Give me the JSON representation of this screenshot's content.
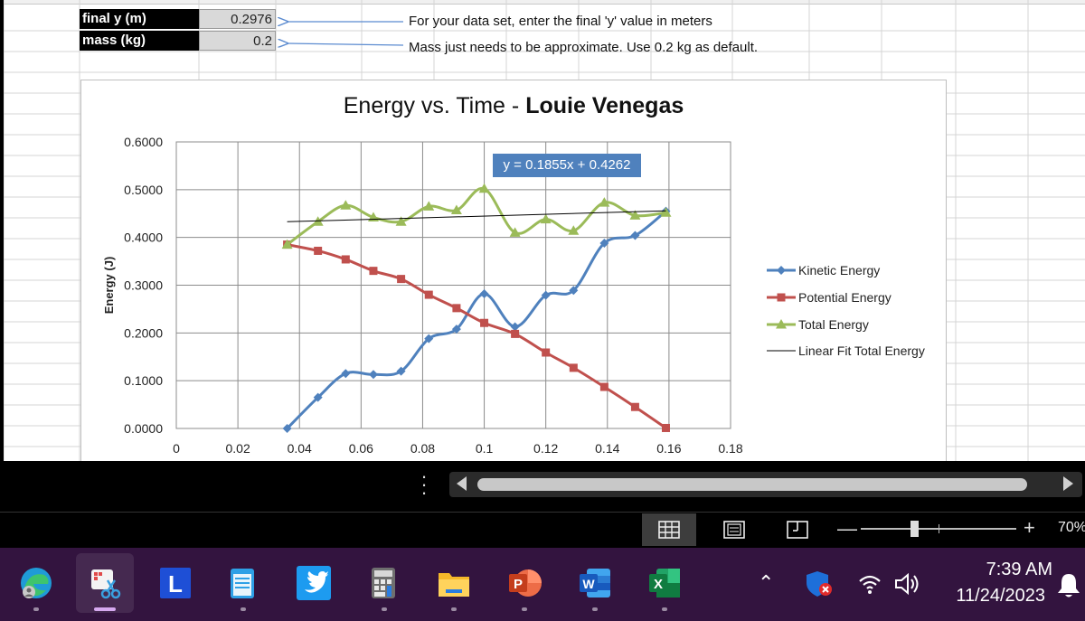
{
  "params": {
    "final_y_label": "final y (m)",
    "final_y_value": "0.2976",
    "mass_label": "mass (kg)",
    "mass_value": "0.2"
  },
  "notes": {
    "final_y_note": "For your data set, enter the final 'y' value in meters",
    "mass_note": "Mass just needs to be approximate. Use 0.2 kg as default."
  },
  "chart": {
    "title_prefix": "Energy vs. Time - ",
    "title_bold": "Louie Venegas",
    "fit_equation": "y = 0.1855x + 0.4262"
  },
  "chart_data": {
    "type": "line",
    "title": "Energy vs. Time - Louie Venegas",
    "ylabel": "Energy (J)",
    "xlabel": "",
    "xlim": [
      0,
      0.18
    ],
    "ylim": [
      0,
      0.6
    ],
    "x_ticks": [
      "0",
      "0.02",
      "0.04",
      "0.06",
      "0.08",
      "0.1",
      "0.12",
      "0.14",
      "0.16",
      "0.18"
    ],
    "y_ticks": [
      "0.0000",
      "0.1000",
      "0.2000",
      "0.3000",
      "0.4000",
      "0.5000",
      "0.6000"
    ],
    "grid": true,
    "legend_position": "right",
    "x": [
      0.036,
      0.046,
      0.055,
      0.064,
      0.073,
      0.082,
      0.091,
      0.1,
      0.11,
      0.12,
      0.129,
      0.139,
      0.149,
      0.159
    ],
    "series": [
      {
        "name": "Kinetic Energy",
        "color": "#4f81bd",
        "marker": "diamond",
        "values": [
          0.0,
          0.065,
          0.115,
          0.113,
          0.12,
          0.188,
          0.208,
          0.282,
          0.213,
          0.279,
          0.289,
          0.388,
          0.404,
          0.455
        ]
      },
      {
        "name": "Potential Energy",
        "color": "#c0504d",
        "marker": "square",
        "values": [
          0.385,
          0.372,
          0.354,
          0.33,
          0.313,
          0.28,
          0.252,
          0.221,
          0.198,
          0.159,
          0.127,
          0.087,
          0.045,
          0.001
        ]
      },
      {
        "name": "Total Energy",
        "color": "#9bbb59",
        "marker": "triangle",
        "values": [
          0.385,
          0.433,
          0.467,
          0.442,
          0.433,
          0.465,
          0.457,
          0.502,
          0.41,
          0.438,
          0.414,
          0.473,
          0.446,
          0.452
        ]
      }
    ],
    "trendline": {
      "name": "Linear Fit Total Energy",
      "color": "#000000",
      "slope": 0.1855,
      "intercept": 0.4262,
      "x_range": [
        0.036,
        0.159
      ]
    }
  },
  "statusbar": {
    "zoom_minus": "—",
    "zoom_plus": "+",
    "zoom_level": "70%"
  },
  "taskbar": {
    "tray_chevron": "⌃",
    "time": "7:39 AM",
    "date": "11/24/2023"
  }
}
